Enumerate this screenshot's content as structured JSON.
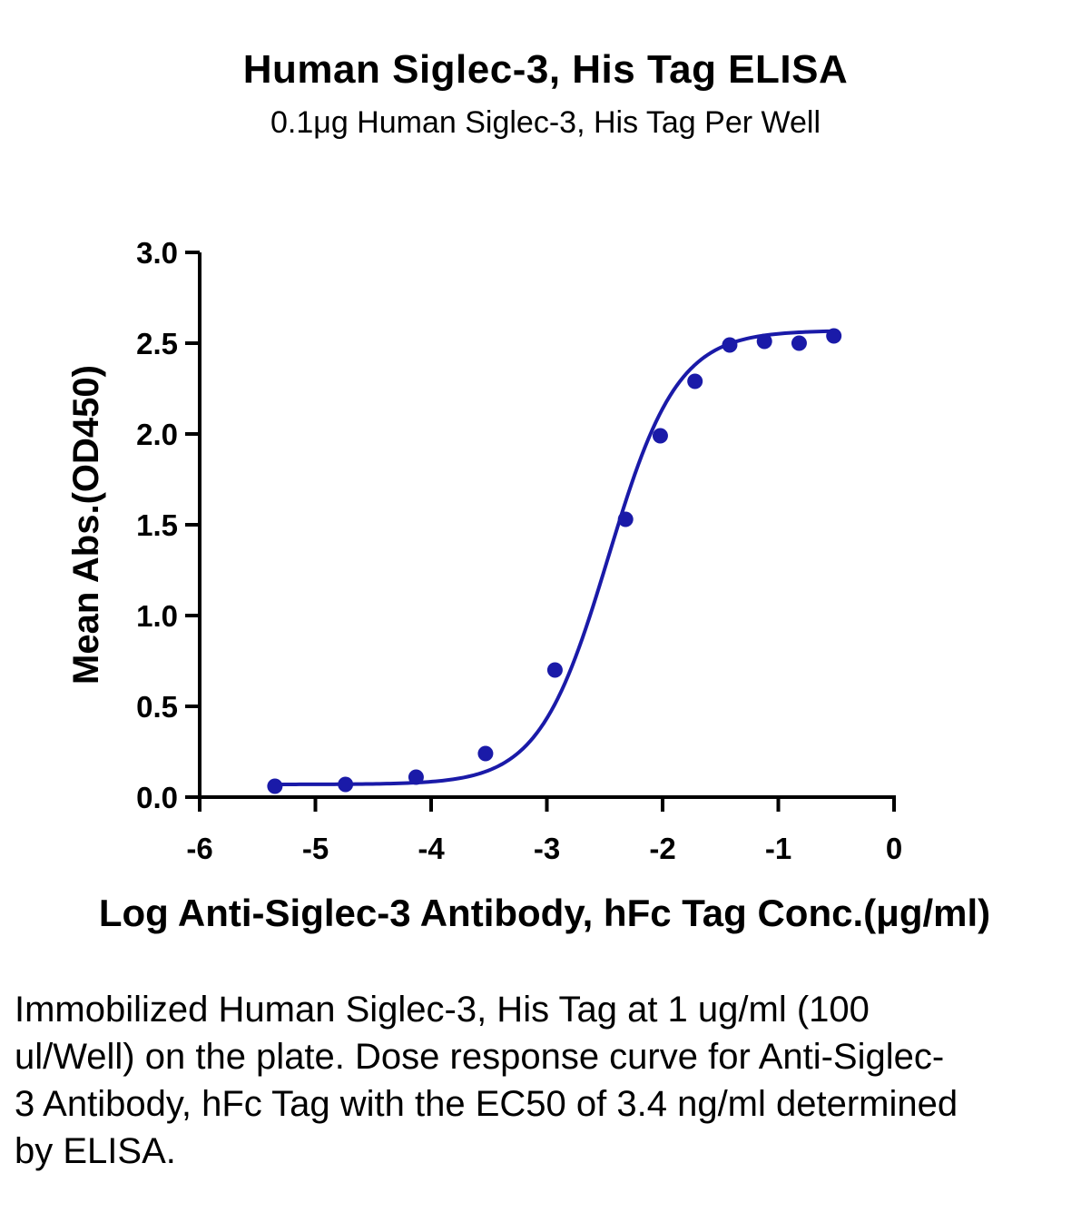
{
  "chart_data": {
    "type": "scatter",
    "title": "Human Siglec-3, His Tag ELISA",
    "subtitle": "0.1μg Human Siglec-3, His Tag Per Well",
    "xlabel": "Log Anti-Siglec-3 Antibody, hFc Tag Conc.(μg/ml)",
    "ylabel": "Mean Abs.(OD450)",
    "xlim": [
      -6,
      0
    ],
    "ylim": [
      0,
      3
    ],
    "x_ticks": [
      "-6",
      "-5",
      "-4",
      "-3",
      "-2",
      "-1",
      "0"
    ],
    "y_ticks": [
      "0.0",
      "0.5",
      "1.0",
      "1.5",
      "2.0",
      "2.5",
      "3.0"
    ],
    "grid": false,
    "series": [
      {
        "color": "#1a1aa8",
        "points": [
          {
            "x": -5.35,
            "y": 0.06
          },
          {
            "x": -4.74,
            "y": 0.07
          },
          {
            "x": -4.13,
            "y": 0.11
          },
          {
            "x": -3.53,
            "y": 0.24
          },
          {
            "x": -2.93,
            "y": 0.7
          },
          {
            "x": -2.32,
            "y": 1.53
          },
          {
            "x": -2.02,
            "y": 1.99
          },
          {
            "x": -1.72,
            "y": 2.29
          },
          {
            "x": -1.42,
            "y": 2.49
          },
          {
            "x": -1.12,
            "y": 2.51
          },
          {
            "x": -0.82,
            "y": 2.5
          },
          {
            "x": -0.52,
            "y": 2.54
          }
        ],
        "fit": {
          "model": "4PL",
          "bottom": 0.07,
          "top": 2.57,
          "logEC50": -2.47,
          "hill": 1.45
        }
      }
    ]
  },
  "caption": "Immobilized Human Siglec-3, His Tag at 1 ug/ml (100 ul/Well) on the plate. Dose response curve for Anti-Siglec-3 Antibody, hFc Tag with the EC50 of 3.4 ng/ml determined by ELISA."
}
